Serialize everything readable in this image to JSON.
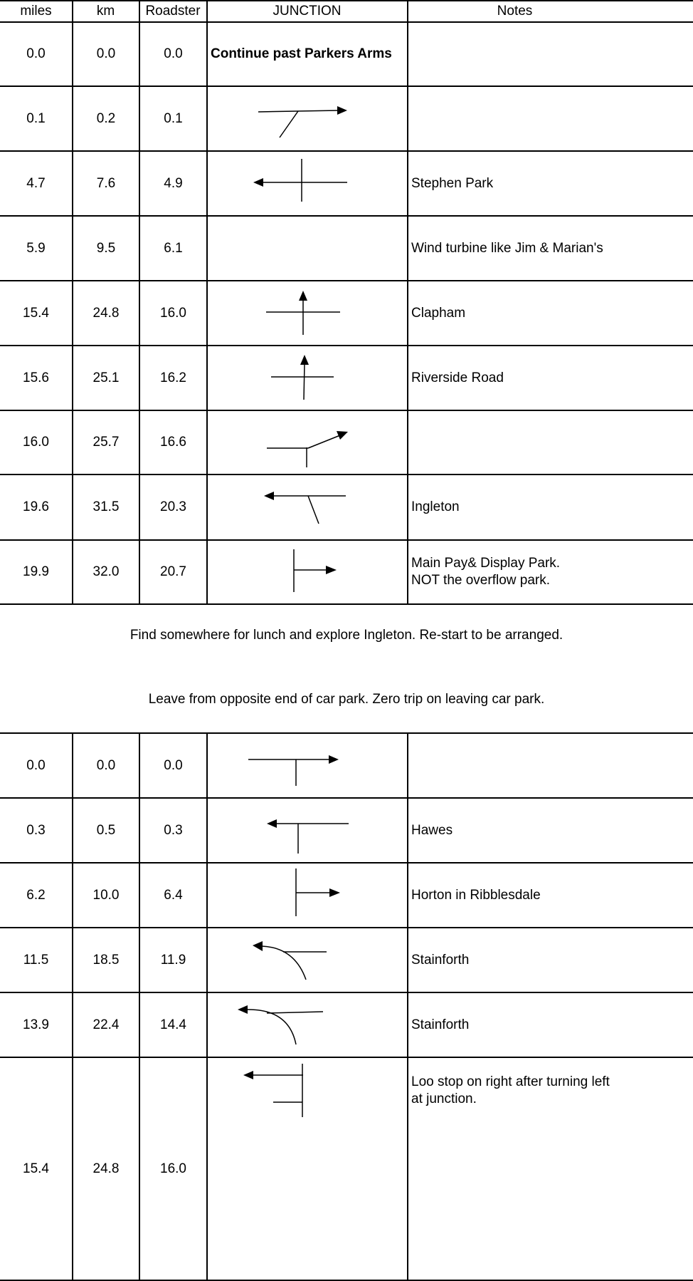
{
  "headers": {
    "miles": "miles",
    "km": "km",
    "roadster": "Roadster",
    "junction": "JUNCTION",
    "notes": "Notes"
  },
  "rows": [
    {
      "miles": "0.0",
      "km": "0.0",
      "roadster": "0.0",
      "junction": "Continue past Parkers Arms",
      "junction_icon": "",
      "notes": ""
    },
    {
      "miles": "0.1",
      "km": "0.2",
      "roadster": "0.1",
      "junction": "",
      "junction_icon": "straight-on-past-left-fork",
      "notes": ""
    },
    {
      "miles": "4.7",
      "km": "7.6",
      "roadster": "4.9",
      "junction": "",
      "junction_icon": "crossroads-turn-left",
      "notes": "Stephen Park"
    },
    {
      "miles": "5.9",
      "km": "9.5",
      "roadster": "6.1",
      "junction": "",
      "junction_icon": "",
      "notes": "Wind turbine like Jim & Marian's"
    },
    {
      "miles": "15.4",
      "km": "24.8",
      "roadster": "16.0",
      "junction": "",
      "junction_icon": "crossroads-straight-on",
      "notes": "Clapham"
    },
    {
      "miles": "15.6",
      "km": "25.1",
      "roadster": "16.2",
      "junction": "",
      "junction_icon": "crossroads-straight-on",
      "notes": "Riverside Road"
    },
    {
      "miles": "16.0",
      "km": "25.7",
      "roadster": "16.6",
      "junction": "",
      "junction_icon": "bear-right",
      "notes": ""
    },
    {
      "miles": "19.6",
      "km": "31.5",
      "roadster": "20.3",
      "junction": "",
      "junction_icon": "t-junction-turn-left",
      "notes": "Ingleton"
    },
    {
      "miles": "19.9",
      "km": "32.0",
      "roadster": "20.7",
      "junction": "",
      "junction_icon": "turn-right-into-car-park",
      "notes": "Main Pay& Display Park.\nNOT the overflow park."
    }
  ],
  "break": {
    "line1": "Find somewhere for lunch and explore Ingleton. Re-start to be arranged.",
    "line2": "Leave from opposite end of car park. Zero trip on leaving car park."
  },
  "rows2": [
    {
      "miles": "0.0",
      "km": "0.0",
      "roadster": "0.0",
      "junction_icon": "t-junction-turn-right",
      "notes": ""
    },
    {
      "miles": "0.3",
      "km": "0.5",
      "roadster": "0.3",
      "junction_icon": "t-junction-turn-left",
      "notes": "Hawes"
    },
    {
      "miles": "6.2",
      "km": "10.0",
      "roadster": "6.4",
      "junction_icon": "turn-right",
      "notes": "Horton in Ribblesdale"
    },
    {
      "miles": "11.5",
      "km": "18.5",
      "roadster": "11.9",
      "junction_icon": "bear-left",
      "notes": "Stainforth"
    },
    {
      "miles": "13.9",
      "km": "22.4",
      "roadster": "14.4",
      "junction_icon": "bear-left",
      "notes": "Stainforth"
    },
    {
      "miles": "15.4",
      "km": "24.8",
      "roadster": "16.0",
      "junction_icon": "staggered-crossroads-turn-left",
      "notes": "Loo stop on right after turning left\nat junction."
    }
  ]
}
